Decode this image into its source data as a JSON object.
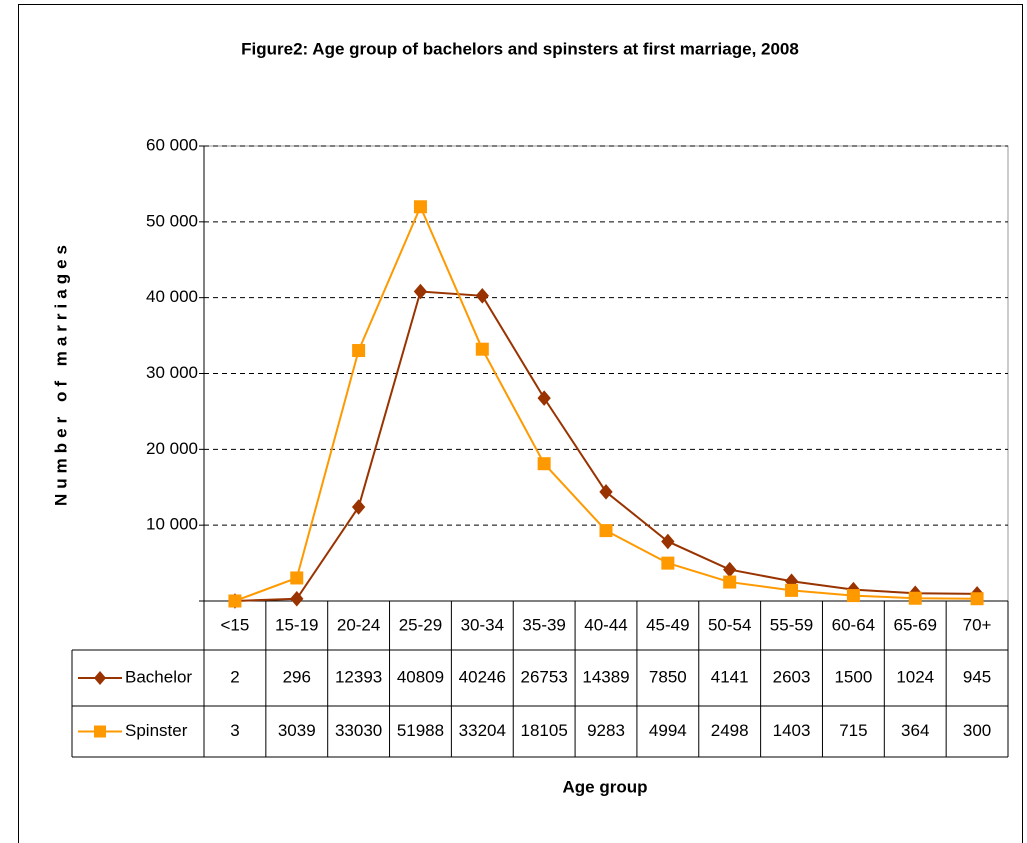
{
  "chart_data": {
    "type": "line",
    "title": "Figure2: Age group of bachelors and spinsters at first marriage, 2008",
    "y_label": "Number of marriages",
    "x_label": "Age group",
    "categories": [
      "<15",
      "15-19",
      "20-24",
      "25-29",
      "30-34",
      "35-39",
      "40-44",
      "45-49",
      "50-54",
      "55-59",
      "60-64",
      "65-69",
      "70+"
    ],
    "series": [
      {
        "name": "Bachelor",
        "color": "#993300",
        "marker": "diamond",
        "values": [
          2,
          296,
          12393,
          40809,
          40246,
          26753,
          14389,
          7850,
          4141,
          2603,
          1500,
          1024,
          945
        ]
      },
      {
        "name": "Spinster",
        "color": "#FF9900",
        "marker": "square",
        "values": [
          3,
          3039,
          33030,
          51988,
          33204,
          18105,
          9283,
          4994,
          2498,
          1403,
          715,
          364,
          300
        ]
      }
    ],
    "ylim": [
      0,
      60000
    ],
    "yticks": [
      {
        "value": 10000,
        "label": "10 000"
      },
      {
        "value": 20000,
        "label": "20 000"
      },
      {
        "value": 30000,
        "label": "30 000"
      },
      {
        "value": 40000,
        "label": "40 000"
      },
      {
        "value": 50000,
        "label": "50 000"
      },
      {
        "value": 60000,
        "label": "60 000"
      }
    ],
    "grid": true
  }
}
